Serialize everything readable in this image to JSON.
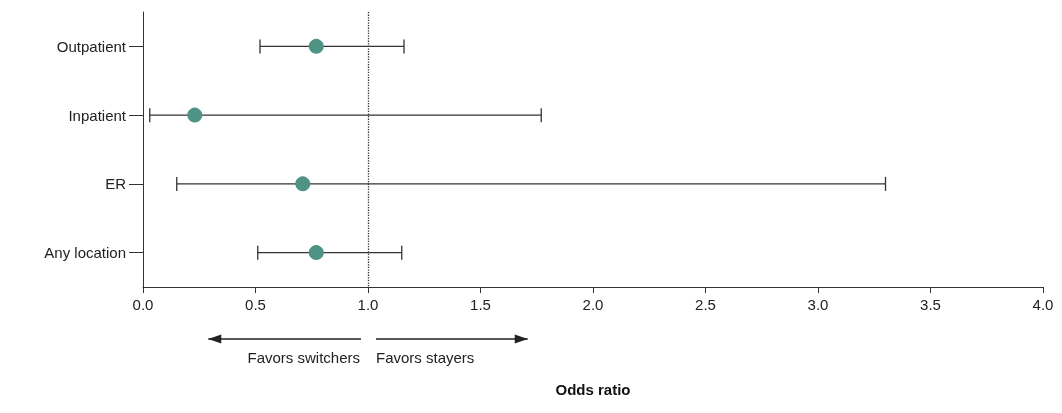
{
  "chart_data": {
    "type": "scatter",
    "orientation": "horizontal",
    "xlabel": "Odds ratio",
    "categories": [
      "Outpatient",
      "Inpatient",
      "ER",
      "Any location"
    ],
    "values": [
      0.77,
      0.23,
      0.71,
      0.77
    ],
    "errors": [
      [
        0.52,
        1.16
      ],
      [
        0.03,
        1.77
      ],
      [
        0.15,
        3.3
      ],
      [
        0.51,
        1.15
      ]
    ],
    "color": "#4e9383",
    "marker": "circle",
    "grid": false,
    "xlim": [
      0,
      4
    ],
    "xticks": [
      {
        "value": 0,
        "label": "0.0"
      },
      0.5,
      {
        "value": 1,
        "label": "1.0"
      },
      1.5,
      {
        "value": 2,
        "label": "2.0"
      },
      2.5,
      {
        "value": 3,
        "label": "3.0"
      },
      3.5,
      {
        "value": 4,
        "label": "4.0"
      }
    ],
    "ref_lines": [
      {
        "axis": "x",
        "value": 1,
        "line_style": "dotted",
        "color": "#333333"
      }
    ],
    "annotations": [
      "Favors switchers",
      "Favors stayers"
    ]
  }
}
